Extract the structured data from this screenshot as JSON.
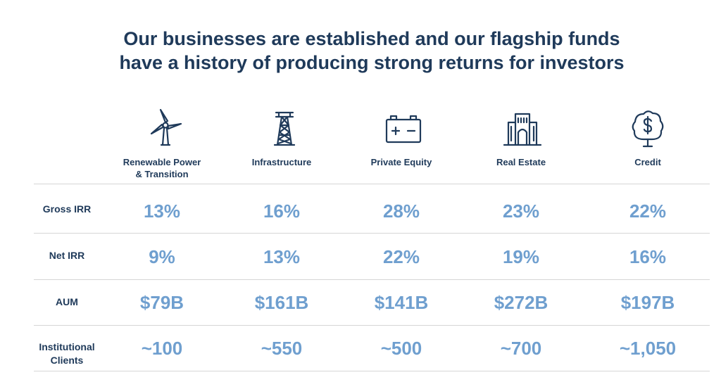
{
  "title": {
    "line1": "Our businesses are established and our flagship funds",
    "line2": "have a history of producing strong returns for investors"
  },
  "columns": [
    {
      "label_line1": "Renewable Power",
      "label_line2": "& Transition",
      "icon": "wind-turbine-icon"
    },
    {
      "label_line1": "Infrastructure",
      "label_line2": "",
      "icon": "transmission-tower-icon"
    },
    {
      "label_line1": "Private Equity",
      "label_line2": "",
      "icon": "battery-icon"
    },
    {
      "label_line1": "Real Estate",
      "label_line2": "",
      "icon": "building-icon"
    },
    {
      "label_line1": "Credit",
      "label_line2": "",
      "icon": "money-tree-icon"
    }
  ],
  "rows": [
    {
      "label_line1": "Gross IRR",
      "label_line2": "",
      "values": [
        "13%",
        "16%",
        "28%",
        "23%",
        "22%"
      ]
    },
    {
      "label_line1": "Net IRR",
      "label_line2": "",
      "values": [
        "9%",
        "13%",
        "22%",
        "19%",
        "16%"
      ]
    },
    {
      "label_line1": "AUM",
      "label_line2": "",
      "values": [
        "$79B",
        "$161B",
        "$141B",
        "$272B",
        "$197B"
      ]
    },
    {
      "label_line1": "Institutional",
      "label_line2": "Clients",
      "values": [
        "~100",
        "~550",
        "~500",
        "~700",
        "~1,050"
      ]
    }
  ],
  "colors": {
    "title": "#1f3a5a",
    "value": "#6f9fcf",
    "rule": "#d6d6d6"
  }
}
